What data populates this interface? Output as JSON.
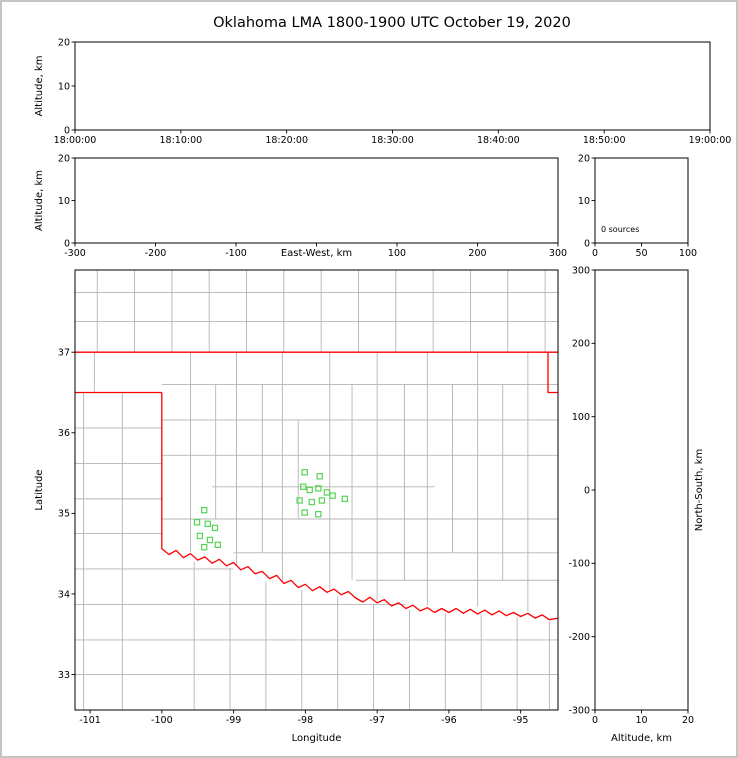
{
  "title": "Oklahoma LMA 1800-1900 UTC October 19, 2020",
  "colors": {
    "axis": "#000000",
    "state_border": "#ff0000",
    "county_line": "#b5b5b5",
    "source_marker": "#55d455",
    "background": "#ffffff"
  },
  "chart_data": [
    {
      "id": "time-height",
      "type": "scatter",
      "xlim": [
        0,
        60
      ],
      "ylim": [
        0,
        20
      ],
      "xticks": [
        0,
        10,
        20,
        30,
        40,
        50,
        60
      ],
      "xtick_labels": [
        "18:00:00",
        "18:10:00",
        "18:20:00",
        "18:30:00",
        "18:40:00",
        "18:50:00",
        "19:00:00"
      ],
      "yticks": [
        0,
        10,
        20
      ],
      "ytick_labels": [
        "0",
        "10",
        "20"
      ],
      "xlabel": "",
      "ylabel": "Altitude, km",
      "points": []
    },
    {
      "id": "east-west-height",
      "type": "scatter",
      "xlim": [
        -300,
        300
      ],
      "ylim": [
        0,
        20
      ],
      "xticks": [
        -300,
        -200,
        -100,
        0,
        100,
        200,
        300
      ],
      "xtick_labels": [
        "-300",
        "-200",
        "-100",
        "",
        "100",
        "200",
        "300"
      ],
      "xlabel": "East-West, km",
      "xlabel_inline": true,
      "yticks": [
        0,
        10,
        20
      ],
      "ytick_labels": [
        "0",
        "10",
        "20"
      ],
      "ylabel": "Altitude, km",
      "points": []
    },
    {
      "id": "altitude-histogram",
      "type": "scatter",
      "xlim": [
        0,
        100
      ],
      "ylim": [
        0,
        20
      ],
      "xticks": [
        0,
        50,
        100
      ],
      "xtick_labels": [
        "0",
        "50",
        "100"
      ],
      "yticks": [
        0,
        10,
        20
      ],
      "ytick_labels": [
        "0",
        "10",
        "20"
      ],
      "annotation": "0 sources",
      "points": []
    },
    {
      "id": "plan-view-map",
      "type": "map",
      "xlim": [
        -101.21,
        -94.48
      ],
      "ylim": [
        32.56,
        38.02
      ],
      "xticks": [
        -101,
        -100,
        -99,
        -98,
        -97,
        -96,
        -95
      ],
      "xtick_labels": [
        "-101",
        "-100",
        "-99",
        "-98",
        "-97",
        "-96",
        "-95"
      ],
      "yticks": [
        33,
        34,
        35,
        36,
        37
      ],
      "ytick_labels": [
        "33",
        "34",
        "35",
        "36",
        "37"
      ],
      "xlabel": "Longitude",
      "ylabel": "Latitude",
      "county_color": "#b5b5b5",
      "border_color": "#ff0000",
      "source_color": "#55d455",
      "county_segments": [
        [
          -101.21,
          37.38,
          -94.48,
          37.38
        ],
        [
          -101.21,
          37.74,
          -94.48,
          37.74
        ],
        [
          -100.9,
          37,
          -100.9,
          38.02
        ],
        [
          -100.38,
          37,
          -100.38,
          38.02
        ],
        [
          -99.86,
          37,
          -99.86,
          38.02
        ],
        [
          -99.34,
          37,
          -99.34,
          38.02
        ],
        [
          -98.82,
          37,
          -98.82,
          38.02
        ],
        [
          -98.3,
          37,
          -98.3,
          38.02
        ],
        [
          -97.78,
          37,
          -97.78,
          38.02
        ],
        [
          -97.26,
          37,
          -97.26,
          38.02
        ],
        [
          -96.74,
          37,
          -96.74,
          38.02
        ],
        [
          -96.22,
          37,
          -96.22,
          38.02
        ],
        [
          -95.7,
          37,
          -95.7,
          38.02
        ],
        [
          -95.18,
          37,
          -95.18,
          38.02
        ],
        [
          -94.66,
          37,
          -94.66,
          38.02
        ],
        [
          -100.94,
          36.5,
          -100.94,
          37
        ],
        [
          -101.09,
          32.56,
          -101.09,
          36.5
        ],
        [
          -100.55,
          32.56,
          -100.55,
          36.5
        ],
        [
          -101.21,
          36.06,
          -100,
          36.06
        ],
        [
          -101.21,
          35.62,
          -100,
          35.62
        ],
        [
          -101.21,
          35.18,
          -100,
          35.18
        ],
        [
          -101.21,
          34.75,
          -100,
          34.75
        ],
        [
          -101.21,
          34.31,
          -99.0,
          34.31
        ],
        [
          -101.21,
          33.87,
          -96.6,
          33.87
        ],
        [
          -101.21,
          33.43,
          -94.48,
          33.43
        ],
        [
          -101.21,
          33.0,
          -94.48,
          33.0
        ],
        [
          -99.55,
          32.56,
          -99.55,
          34.4
        ],
        [
          -99.05,
          32.56,
          -99.05,
          34.32
        ],
        [
          -98.55,
          32.56,
          -98.55,
          34.15
        ],
        [
          -98.05,
          32.56,
          -98.05,
          34.05
        ],
        [
          -97.55,
          32.56,
          -97.55,
          33.97
        ],
        [
          -97.05,
          32.56,
          -97.05,
          33.87
        ],
        [
          -96.55,
          32.56,
          -96.55,
          33.8
        ],
        [
          -96.05,
          32.56,
          -96.05,
          33.76
        ],
        [
          -95.55,
          32.56,
          -95.55,
          33.75
        ],
        [
          -95.05,
          32.56,
          -95.05,
          33.71
        ],
        [
          -94.6,
          32.56,
          -94.6,
          33.66
        ],
        [
          -100,
          36.6,
          -94.48,
          36.6
        ],
        [
          -100,
          36.16,
          -94.48,
          36.16
        ],
        [
          -100,
          35.72,
          -94.48,
          35.72
        ],
        [
          -99.3,
          35.33,
          -96.2,
          35.33
        ],
        [
          -100,
          34.93,
          -94.48,
          34.93
        ],
        [
          -99.0,
          34.51,
          -94.48,
          34.51
        ],
        [
          -97.3,
          34.17,
          -94.48,
          34.17
        ],
        [
          -99.6,
          34.52,
          -99.6,
          37
        ],
        [
          -99.25,
          34.93,
          -99.25,
          36.6
        ],
        [
          -98.96,
          34.35,
          -98.96,
          37
        ],
        [
          -98.6,
          34.51,
          -98.6,
          36.6
        ],
        [
          -98.32,
          34.16,
          -98.32,
          37
        ],
        [
          -98.1,
          34.93,
          -98.1,
          36.16
        ],
        [
          -97.66,
          34.05,
          -97.66,
          37
        ],
        [
          -97.35,
          34.17,
          -97.35,
          36.6
        ],
        [
          -97.0,
          33.92,
          -97.0,
          37
        ],
        [
          -96.62,
          34.17,
          -96.62,
          36.6
        ],
        [
          -96.3,
          33.86,
          -96.3,
          37
        ],
        [
          -95.95,
          34.51,
          -95.95,
          36.6
        ],
        [
          -95.6,
          33.84,
          -95.6,
          37
        ],
        [
          -95.25,
          34.17,
          -95.25,
          36.6
        ],
        [
          -94.9,
          33.78,
          -94.9,
          37
        ]
      ],
      "state_border": [
        {
          "name": "kansas-oklahoma-border",
          "points": [
            [
              -101.21,
              37
            ],
            [
              -94.48,
              37
            ]
          ]
        },
        {
          "name": "panhandle-south-border",
          "points": [
            [
              -101.21,
              36.5
            ],
            [
              -100,
              36.5
            ]
          ]
        },
        {
          "name": "missouri-arkansas-border",
          "points": [
            [
              -94.62,
              37
            ],
            [
              -94.62,
              36.5
            ],
            [
              -94.43,
              36.5
            ],
            [
              -94.43,
              33.7
            ]
          ]
        },
        {
          "name": "texas-border-and-red-river",
          "points": [
            [
              -100,
              36.5
            ],
            [
              -100,
              34.56
            ],
            [
              -99.9,
              34.49
            ],
            [
              -99.8,
              34.54
            ],
            [
              -99.7,
              34.45
            ],
            [
              -99.6,
              34.5
            ],
            [
              -99.5,
              34.42
            ],
            [
              -99.4,
              34.46
            ],
            [
              -99.3,
              34.38
            ],
            [
              -99.2,
              34.43
            ],
            [
              -99.1,
              34.35
            ],
            [
              -99.0,
              34.39
            ],
            [
              -98.9,
              34.3
            ],
            [
              -98.8,
              34.34
            ],
            [
              -98.7,
              34.25
            ],
            [
              -98.6,
              34.28
            ],
            [
              -98.5,
              34.19
            ],
            [
              -98.4,
              34.23
            ],
            [
              -98.3,
              34.13
            ],
            [
              -98.2,
              34.17
            ],
            [
              -98.1,
              34.08
            ],
            [
              -98.0,
              34.12
            ],
            [
              -97.9,
              34.04
            ],
            [
              -97.8,
              34.09
            ],
            [
              -97.7,
              34.02
            ],
            [
              -97.6,
              34.06
            ],
            [
              -97.5,
              33.99
            ],
            [
              -97.4,
              34.03
            ],
            [
              -97.3,
              33.95
            ],
            [
              -97.2,
              33.9
            ],
            [
              -97.1,
              33.96
            ],
            [
              -97.0,
              33.89
            ],
            [
              -96.9,
              33.93
            ],
            [
              -96.8,
              33.85
            ],
            [
              -96.7,
              33.89
            ],
            [
              -96.6,
              33.82
            ],
            [
              -96.5,
              33.86
            ],
            [
              -96.4,
              33.79
            ],
            [
              -96.3,
              33.83
            ],
            [
              -96.2,
              33.77
            ],
            [
              -96.1,
              33.82
            ],
            [
              -96.0,
              33.77
            ],
            [
              -95.9,
              33.82
            ],
            [
              -95.8,
              33.76
            ],
            [
              -95.7,
              33.81
            ],
            [
              -95.6,
              33.75
            ],
            [
              -95.5,
              33.8
            ],
            [
              -95.4,
              33.74
            ],
            [
              -95.3,
              33.79
            ],
            [
              -95.2,
              33.73
            ],
            [
              -95.1,
              33.77
            ],
            [
              -95.0,
              33.72
            ],
            [
              -94.9,
              33.76
            ],
            [
              -94.8,
              33.7
            ],
            [
              -94.7,
              33.74
            ],
            [
              -94.6,
              33.68
            ],
            [
              -94.48,
              33.7
            ]
          ]
        }
      ],
      "sources": [
        [
          -99.41,
          35.04
        ],
        [
          -99.51,
          34.89
        ],
        [
          -99.36,
          34.87
        ],
        [
          -99.26,
          34.82
        ],
        [
          -99.47,
          34.72
        ],
        [
          -99.33,
          34.67
        ],
        [
          -99.41,
          34.58
        ],
        [
          -99.22,
          34.61
        ],
        [
          -98.01,
          35.51
        ],
        [
          -97.8,
          35.46
        ],
        [
          -98.03,
          35.33
        ],
        [
          -97.94,
          35.29
        ],
        [
          -97.82,
          35.31
        ],
        [
          -97.7,
          35.26
        ],
        [
          -98.08,
          35.16
        ],
        [
          -97.91,
          35.14
        ],
        [
          -97.77,
          35.16
        ],
        [
          -98.01,
          35.01
        ],
        [
          -97.82,
          34.99
        ],
        [
          -97.62,
          35.22
        ],
        [
          -97.45,
          35.18
        ]
      ]
    },
    {
      "id": "north-south-height",
      "type": "scatter",
      "xlim": [
        0,
        20
      ],
      "ylim": [
        -300,
        300
      ],
      "xticks": [
        0,
        10,
        20
      ],
      "xtick_labels": [
        "0",
        "10",
        "20"
      ],
      "yticks": [
        -300,
        -200,
        -100,
        0,
        100,
        200,
        300
      ],
      "ytick_labels": [
        "-300",
        "-200",
        "-100",
        "0",
        "100",
        "200",
        "300"
      ],
      "xlabel": "Altitude, km",
      "ylabel_right": "North-South, km",
      "points": []
    }
  ]
}
